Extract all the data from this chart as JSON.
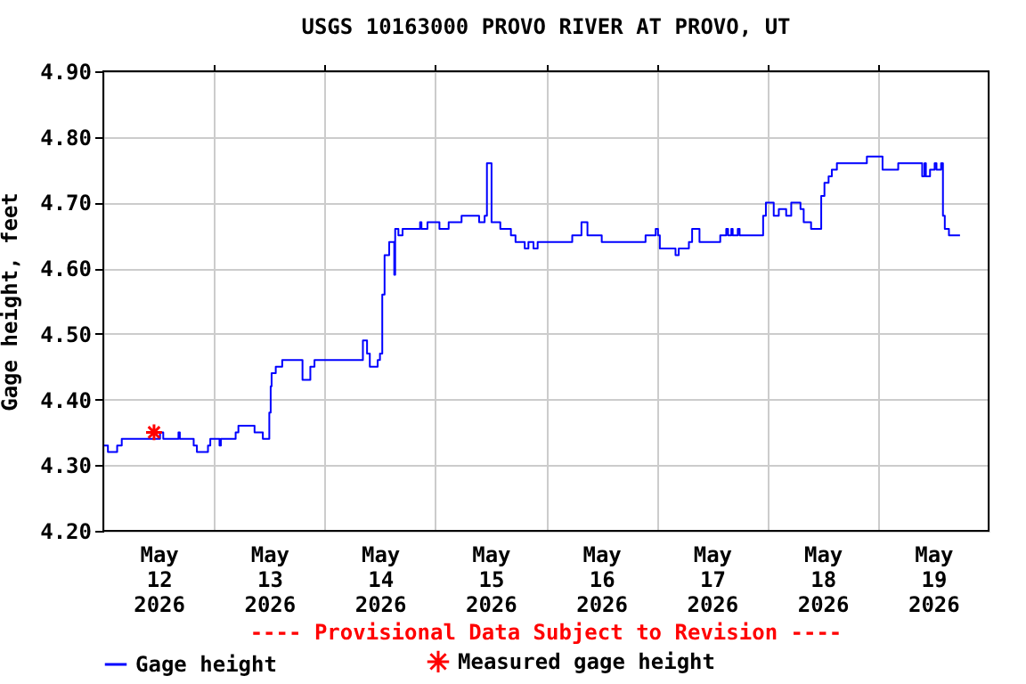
{
  "chart_data": {
    "type": "step",
    "title": "USGS 10163000 PROVO RIVER AT PROVO, UT",
    "ylabel": "Gage height, feet",
    "annotations": [
      "---- Provisional Data Subject to Revision ----"
    ],
    "xlim": [
      "2026-05-12T00:00",
      "2026-05-20T00:00"
    ],
    "xticks": [
      {
        "value": "2026-05-12T12:00",
        "label": "May\n12\n2026"
      },
      {
        "value": "2026-05-13T00:00",
        "label": null
      },
      {
        "value": "2026-05-13T12:00",
        "label": "May\n13\n2026"
      },
      {
        "value": "2026-05-14T00:00",
        "label": null
      },
      {
        "value": "2026-05-14T12:00",
        "label": "May\n14\n2026"
      },
      {
        "value": "2026-05-15T00:00",
        "label": null
      },
      {
        "value": "2026-05-15T12:00",
        "label": "May\n15\n2026"
      },
      {
        "value": "2026-05-16T00:00",
        "label": null
      },
      {
        "value": "2026-05-16T12:00",
        "label": "May\n16\n2026"
      },
      {
        "value": "2026-05-17T00:00",
        "label": null
      },
      {
        "value": "2026-05-17T12:00",
        "label": "May\n17\n2026"
      },
      {
        "value": "2026-05-18T00:00",
        "label": null
      },
      {
        "value": "2026-05-18T12:00",
        "label": "May\n18\n2026"
      },
      {
        "value": "2026-05-19T00:00",
        "label": null
      },
      {
        "value": "2026-05-19T12:00",
        "label": "May\n19\n2026"
      }
    ],
    "ylim": [
      4.2,
      4.9
    ],
    "yticks": [
      {
        "value": 4.2,
        "label": "4.20"
      },
      {
        "value": 4.3,
        "label": "4.30"
      },
      {
        "value": 4.4,
        "label": "4.40"
      },
      {
        "value": 4.5,
        "label": "4.50"
      },
      {
        "value": 4.6,
        "label": "4.60"
      },
      {
        "value": 4.7,
        "label": "4.70"
      },
      {
        "value": 4.8,
        "label": "4.80"
      },
      {
        "value": 4.9,
        "label": "4.90"
      }
    ],
    "grid": true,
    "legend": "bottom",
    "series": [
      {
        "name": "Gage height",
        "color": "#0000ff",
        "marker": "none",
        "x": [
          "2026-05-12T00:00",
          "2026-05-12T01:00",
          "2026-05-12T03:00",
          "2026-05-12T04:00",
          "2026-05-12T12:18",
          "2026-05-12T13:00",
          "2026-05-12T16:18",
          "2026-05-12T16:36",
          "2026-05-12T19:36",
          "2026-05-12T20:18",
          "2026-05-12T22:42",
          "2026-05-12T23:12",
          "2026-05-13T01:12",
          "2026-05-13T01:30",
          "2026-05-13T04:42",
          "2026-05-13T05:18",
          "2026-05-13T08:48",
          "2026-05-13T10:36",
          "2026-05-13T12:00",
          "2026-05-13T12:18",
          "2026-05-13T12:30",
          "2026-05-13T13:24",
          "2026-05-13T14:48",
          "2026-05-13T19:12",
          "2026-05-13T20:54",
          "2026-05-13T21:48",
          "2026-05-14T08:18",
          "2026-05-14T09:12",
          "2026-05-14T09:48",
          "2026-05-14T11:30",
          "2026-05-14T12:00",
          "2026-05-14T12:30",
          "2026-05-14T13:00",
          "2026-05-14T14:00",
          "2026-05-14T15:06",
          "2026-05-14T15:18",
          "2026-05-14T16:00",
          "2026-05-14T16:54",
          "2026-05-14T20:42",
          "2026-05-14T21:00",
          "2026-05-14T22:18",
          "2026-05-15T00:54",
          "2026-05-15T02:54",
          "2026-05-15T05:42",
          "2026-05-15T09:30",
          "2026-05-15T10:42",
          "2026-05-15T11:12",
          "2026-05-15T12:12",
          "2026-05-15T14:06",
          "2026-05-15T16:24",
          "2026-05-15T17:24",
          "2026-05-15T19:24",
          "2026-05-15T20:12",
          "2026-05-15T21:18",
          "2026-05-15T22:12",
          "2026-05-16T05:42",
          "2026-05-16T07:42",
          "2026-05-16T09:00",
          "2026-05-16T12:06",
          "2026-05-16T21:36",
          "2026-05-16T23:48",
          "2026-05-17T00:18",
          "2026-05-17T00:42",
          "2026-05-17T04:06",
          "2026-05-17T04:48",
          "2026-05-17T07:00",
          "2026-05-17T07:42",
          "2026-05-17T09:18",
          "2026-05-17T13:48",
          "2026-05-17T15:06",
          "2026-05-17T15:30",
          "2026-05-17T16:12",
          "2026-05-17T16:30",
          "2026-05-17T17:36",
          "2026-05-17T18:00",
          "2026-05-17T23:06",
          "2026-05-17T23:42",
          "2026-05-18T01:24",
          "2026-05-18T02:30",
          "2026-05-18T04:06",
          "2026-05-18T05:12",
          "2026-05-18T07:12",
          "2026-05-18T07:54",
          "2026-05-18T09:30",
          "2026-05-18T11:42",
          "2026-05-18T12:24",
          "2026-05-18T13:18",
          "2026-05-18T14:00",
          "2026-05-18T15:06",
          "2026-05-18T21:36",
          "2026-05-19T01:00",
          "2026-05-19T04:24",
          "2026-05-19T09:36",
          "2026-05-19T10:06",
          "2026-05-19T10:24",
          "2026-05-19T11:18",
          "2026-05-19T12:18",
          "2026-05-19T12:42",
          "2026-05-19T13:42",
          "2026-05-19T14:06",
          "2026-05-19T14:30",
          "2026-05-19T15:24",
          "2026-05-19T17:48"
        ],
        "values": [
          4.33,
          4.32,
          4.33,
          4.34,
          4.35,
          4.34,
          4.35,
          4.34,
          4.33,
          4.32,
          4.33,
          4.34,
          4.33,
          4.34,
          4.35,
          4.36,
          4.35,
          4.34,
          4.38,
          4.42,
          4.44,
          4.45,
          4.46,
          4.43,
          4.45,
          4.46,
          4.49,
          4.47,
          4.45,
          4.46,
          4.47,
          4.56,
          4.62,
          4.64,
          4.59,
          4.66,
          4.65,
          4.66,
          4.67,
          4.66,
          4.67,
          4.66,
          4.67,
          4.68,
          4.67,
          4.68,
          4.76,
          4.67,
          4.66,
          4.65,
          4.64,
          4.63,
          4.64,
          4.63,
          4.64,
          4.65,
          4.67,
          4.65,
          4.64,
          4.65,
          4.66,
          4.65,
          4.63,
          4.62,
          4.63,
          4.64,
          4.66,
          4.64,
          4.65,
          4.66,
          4.65,
          4.66,
          4.65,
          4.66,
          4.65,
          4.68,
          4.7,
          4.68,
          4.69,
          4.68,
          4.7,
          4.69,
          4.67,
          4.66,
          4.71,
          4.73,
          4.74,
          4.75,
          4.76,
          4.77,
          4.75,
          4.76,
          4.74,
          4.76,
          4.74,
          4.75,
          4.76,
          4.75,
          4.76,
          4.68,
          4.66,
          4.65,
          4.65
        ]
      },
      {
        "name": "Measured gage height",
        "color": "#ff0000",
        "type": "scatter",
        "marker": "cross",
        "x": [
          "2026-05-12T11:00"
        ],
        "values": [
          4.35
        ]
      }
    ]
  }
}
